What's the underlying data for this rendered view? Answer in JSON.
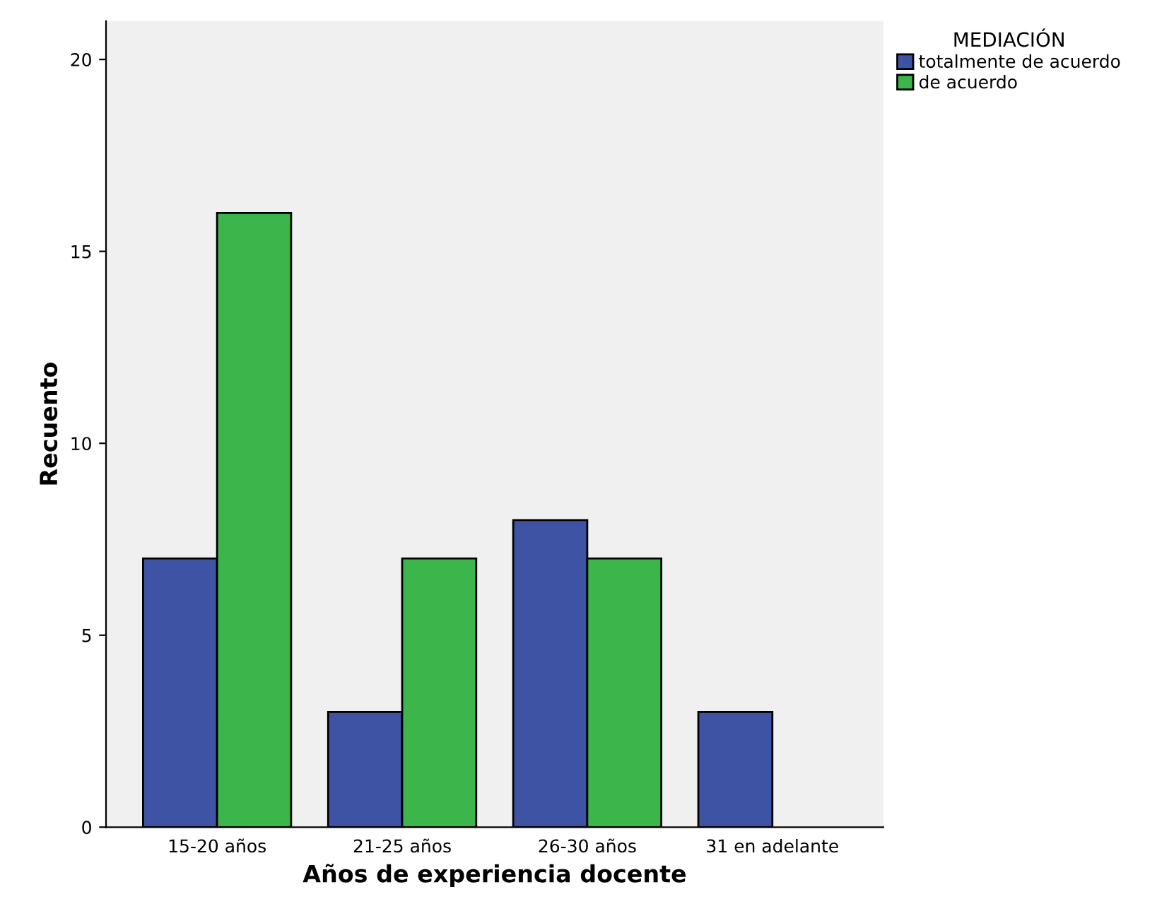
{
  "chart_data": {
    "type": "bar",
    "xlabel": "Años de experiencia docente",
    "ylabel": "Recuento",
    "legend_title": "MEDIACIÓN",
    "categories": [
      "15-20 años",
      "21-25 años",
      "26-30 años",
      "31 en adelante"
    ],
    "series": [
      {
        "name": "totalmente de acuerdo",
        "color": "#3e53a4",
        "values": [
          7,
          3,
          8,
          3
        ]
      },
      {
        "name": "de acuerdo",
        "color": "#3cb54a",
        "values": [
          16,
          7,
          7,
          null
        ]
      }
    ],
    "ylim": [
      0,
      21
    ],
    "yticks": [
      0,
      5,
      10,
      15,
      20
    ],
    "grid": false,
    "legend": "top right"
  }
}
